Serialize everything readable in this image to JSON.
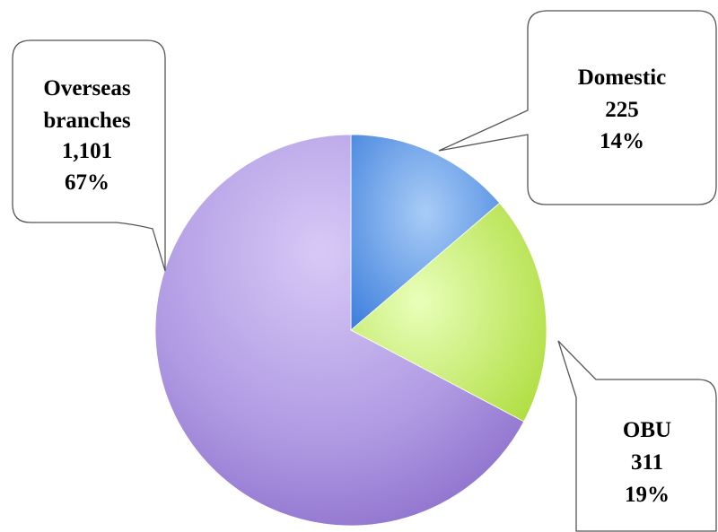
{
  "chart_data": {
    "type": "pie",
    "title": "",
    "slices": [
      {
        "label": "Domestic",
        "value": 225,
        "value_label": "225",
        "percent_label": "14%",
        "color": "#6fa6e8"
      },
      {
        "label": "OBU",
        "value": 311,
        "value_label": "311",
        "percent_label": "19%",
        "color": "#c6e872"
      },
      {
        "label": "Overseas branches",
        "value": 1101,
        "value_label": "1,101",
        "percent_label": "67%",
        "color": "#a58fd8"
      }
    ],
    "start_angle_deg": 0,
    "direction": "clockwise",
    "legend": "none",
    "data_labels": "callouts"
  }
}
